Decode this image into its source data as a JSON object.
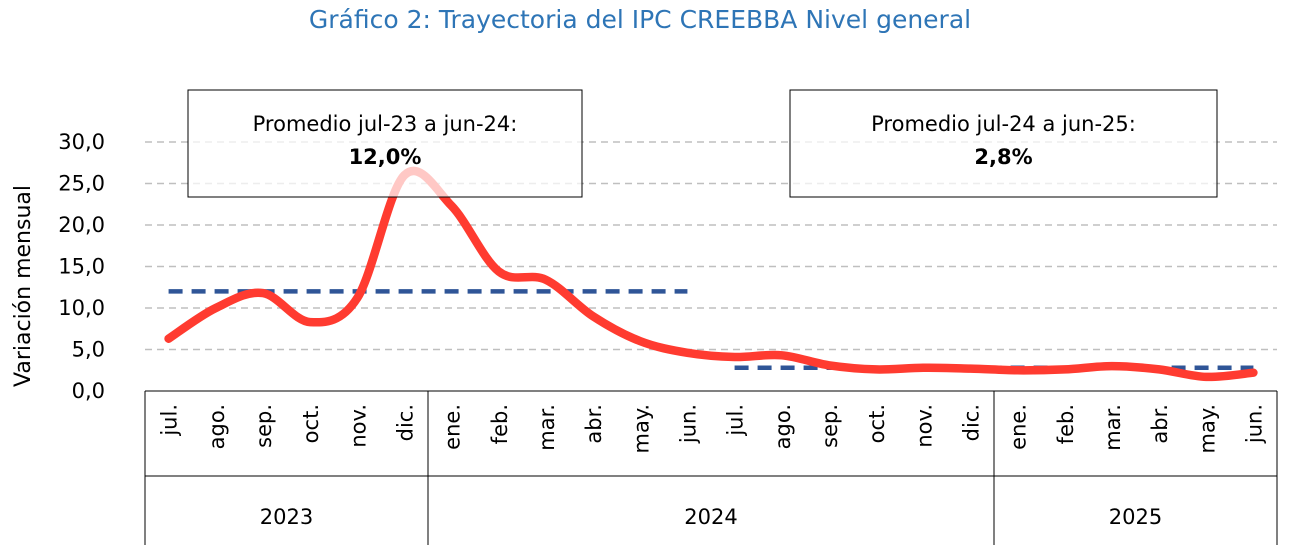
{
  "chart_data": {
    "type": "line",
    "title": "Gráfico 2: Trayectoria del IPC CREEBBA Nivel general",
    "ylabel": "Variación mensual",
    "xlabel": "",
    "ylim": [
      0,
      30
    ],
    "yticks": [
      "0,0",
      "5,0",
      "10,0",
      "15,0",
      "20,0",
      "25,0",
      "30,0"
    ],
    "ytick_values": [
      0,
      5,
      10,
      15,
      20,
      25,
      30
    ],
    "grid": true,
    "categories": [
      "jul.",
      "ago.",
      "sep.",
      "oct.",
      "nov.",
      "dic.",
      "ene.",
      "feb.",
      "mar.",
      "abr.",
      "may.",
      "jun.",
      "jul.",
      "ago.",
      "sep.",
      "oct.",
      "nov.",
      "dic.",
      "ene.",
      "feb.",
      "mar.",
      "abr.",
      "may.",
      "jun."
    ],
    "groups": [
      {
        "label": "2023",
        "count": 6
      },
      {
        "label": "2024",
        "count": 12
      },
      {
        "label": "2025",
        "count": 6
      }
    ],
    "series": [
      {
        "name": "",
        "color": "#ff3b30",
        "values": [
          6.3,
          10.0,
          11.8,
          8.3,
          11.2,
          26.0,
          22.3,
          14.4,
          13.4,
          9.0,
          6.0,
          4.6,
          4.1,
          4.3,
          3.1,
          2.6,
          2.8,
          2.7,
          2.5,
          2.6,
          3.0,
          2.6,
          1.7,
          2.2
        ]
      }
    ],
    "averages": [
      {
        "value": 12.0,
        "from_index": 0,
        "to_index": 11,
        "color": "#2f5597"
      },
      {
        "value": 2.8,
        "from_index": 12,
        "to_index": 23,
        "color": "#2f5597"
      }
    ],
    "annotations": [
      {
        "text": "Promedio jul-23 a jun-24:",
        "value": "12,0%"
      },
      {
        "text": "Promedio jul-24 a jun-25:",
        "value": "2,8%"
      }
    ]
  }
}
